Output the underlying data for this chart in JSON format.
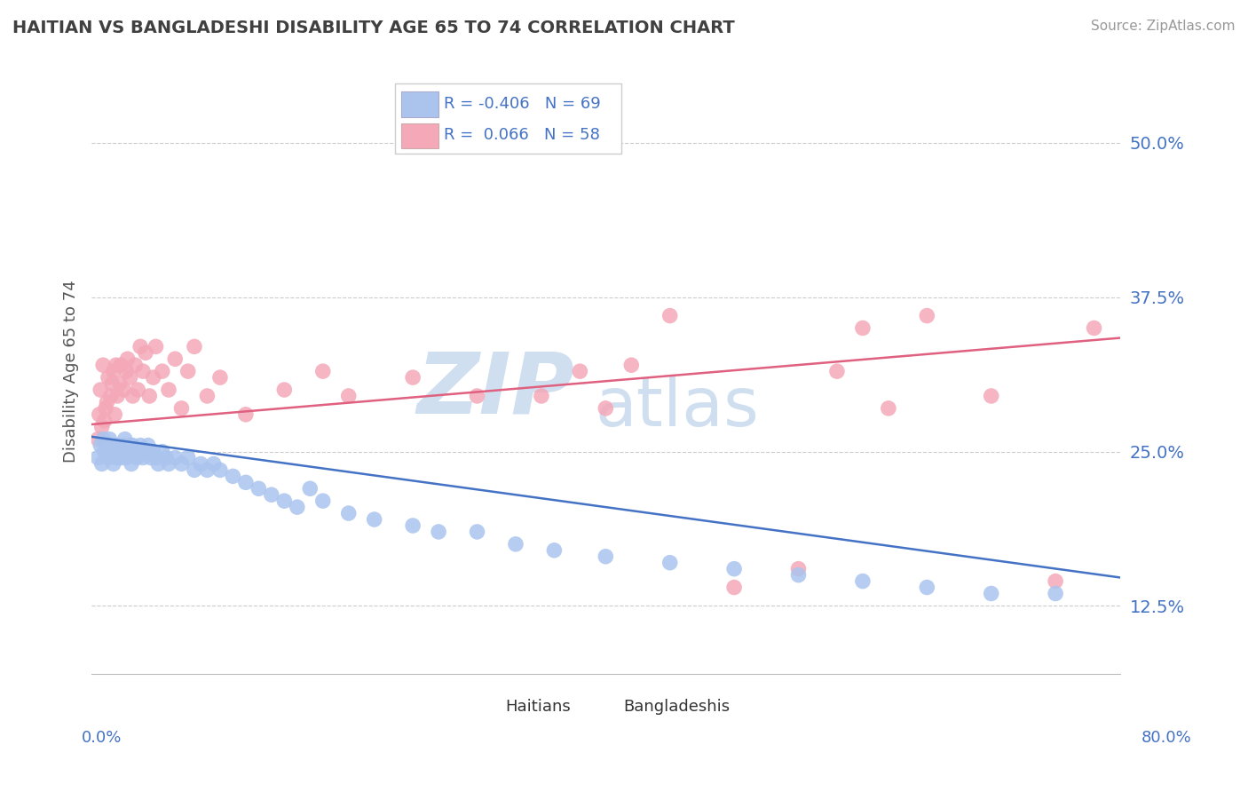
{
  "title": "HAITIAN VS BANGLADESHI DISABILITY AGE 65 TO 74 CORRELATION CHART",
  "source_text": "Source: ZipAtlas.com",
  "ylabel": "Disability Age 65 to 74",
  "ytick_labels": [
    "12.5%",
    "25.0%",
    "37.5%",
    "50.0%"
  ],
  "ytick_values": [
    0.125,
    0.25,
    0.375,
    0.5
  ],
  "xmin": 0.0,
  "xmax": 0.8,
  "ymin": 0.07,
  "ymax": 0.56,
  "haitian_color": "#aac4ee",
  "bangladeshi_color": "#f4a8b8",
  "haitian_line_color": "#4472c4",
  "bangladeshi_line_color": "#e06080",
  "haitian_R": -0.406,
  "haitian_N": 69,
  "bangladeshi_R": 0.066,
  "bangladeshi_N": 58,
  "haitian_x": [
    0.005,
    0.007,
    0.008,
    0.009,
    0.01,
    0.012,
    0.013,
    0.014,
    0.015,
    0.016,
    0.017,
    0.018,
    0.019,
    0.02,
    0.021,
    0.022,
    0.023,
    0.025,
    0.026,
    0.027,
    0.028,
    0.03,
    0.031,
    0.032,
    0.033,
    0.035,
    0.036,
    0.038,
    0.04,
    0.042,
    0.044,
    0.046,
    0.048,
    0.05,
    0.052,
    0.055,
    0.058,
    0.06,
    0.065,
    0.07,
    0.075,
    0.08,
    0.085,
    0.09,
    0.095,
    0.1,
    0.11,
    0.12,
    0.13,
    0.14,
    0.15,
    0.16,
    0.17,
    0.18,
    0.2,
    0.22,
    0.25,
    0.27,
    0.3,
    0.33,
    0.36,
    0.4,
    0.45,
    0.5,
    0.55,
    0.6,
    0.65,
    0.7,
    0.75
  ],
  "haitian_y": [
    0.245,
    0.255,
    0.24,
    0.26,
    0.25,
    0.255,
    0.245,
    0.26,
    0.25,
    0.255,
    0.24,
    0.255,
    0.25,
    0.245,
    0.255,
    0.25,
    0.245,
    0.255,
    0.26,
    0.245,
    0.25,
    0.255,
    0.24,
    0.255,
    0.25,
    0.245,
    0.25,
    0.255,
    0.245,
    0.25,
    0.255,
    0.245,
    0.25,
    0.245,
    0.24,
    0.25,
    0.245,
    0.24,
    0.245,
    0.24,
    0.245,
    0.235,
    0.24,
    0.235,
    0.24,
    0.235,
    0.23,
    0.225,
    0.22,
    0.215,
    0.21,
    0.205,
    0.22,
    0.21,
    0.2,
    0.195,
    0.19,
    0.185,
    0.185,
    0.175,
    0.17,
    0.165,
    0.16,
    0.155,
    0.15,
    0.145,
    0.14,
    0.135,
    0.135
  ],
  "bangladeshi_x": [
    0.005,
    0.006,
    0.007,
    0.008,
    0.009,
    0.01,
    0.011,
    0.012,
    0.013,
    0.015,
    0.016,
    0.017,
    0.018,
    0.019,
    0.02,
    0.022,
    0.023,
    0.025,
    0.027,
    0.028,
    0.03,
    0.032,
    0.034,
    0.036,
    0.038,
    0.04,
    0.042,
    0.045,
    0.048,
    0.05,
    0.055,
    0.06,
    0.065,
    0.07,
    0.075,
    0.08,
    0.09,
    0.1,
    0.12,
    0.15,
    0.18,
    0.2,
    0.25,
    0.3,
    0.35,
    0.38,
    0.4,
    0.42,
    0.45,
    0.5,
    0.55,
    0.58,
    0.6,
    0.62,
    0.65,
    0.7,
    0.75,
    0.78
  ],
  "bangladeshi_y": [
    0.26,
    0.28,
    0.3,
    0.27,
    0.32,
    0.275,
    0.285,
    0.29,
    0.31,
    0.295,
    0.305,
    0.315,
    0.28,
    0.32,
    0.295,
    0.305,
    0.32,
    0.3,
    0.315,
    0.325,
    0.31,
    0.295,
    0.32,
    0.3,
    0.335,
    0.315,
    0.33,
    0.295,
    0.31,
    0.335,
    0.315,
    0.3,
    0.325,
    0.285,
    0.315,
    0.335,
    0.295,
    0.31,
    0.28,
    0.3,
    0.315,
    0.295,
    0.31,
    0.295,
    0.295,
    0.315,
    0.285,
    0.32,
    0.36,
    0.14,
    0.155,
    0.315,
    0.35,
    0.285,
    0.36,
    0.295,
    0.145,
    0.35
  ]
}
